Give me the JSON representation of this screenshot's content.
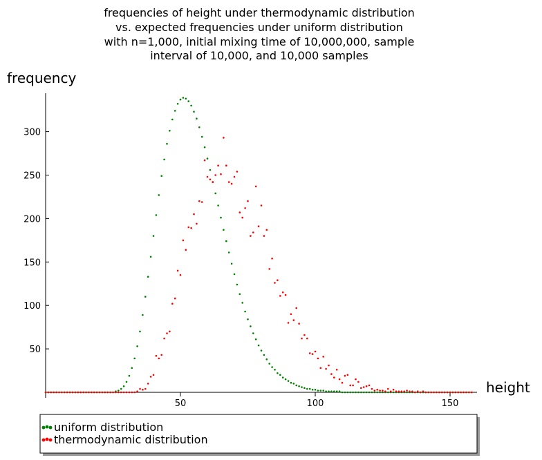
{
  "colors": {
    "uniform": "#008000",
    "thermo": "#ff0000"
  },
  "chart_data": {
    "type": "scatter",
    "title_lines": [
      "frequencies of height under thermodynamic distribution",
      "vs. expected frequencies under uniform distribution",
      "with n=1,000, initial mixing time of 10,000,000, sample",
      "interval of 10,000, and 10,000 samples"
    ],
    "xlabel": "height",
    "ylabel": "frequency",
    "xlim": [
      0,
      160
    ],
    "ylim": [
      0,
      345
    ],
    "xticks": [
      50,
      100,
      150
    ],
    "yticks": [
      50,
      100,
      150,
      200,
      250,
      300
    ],
    "legend_placement": "bottom",
    "series": [
      {
        "name": "uniform distribution",
        "color": "#008000",
        "x": [
          0,
          1,
          2,
          3,
          4,
          5,
          6,
          7,
          8,
          9,
          10,
          11,
          12,
          13,
          14,
          15,
          16,
          17,
          18,
          19,
          20,
          21,
          22,
          23,
          24,
          25,
          26,
          27,
          28,
          29,
          30,
          31,
          32,
          33,
          34,
          35,
          36,
          37,
          38,
          39,
          40,
          41,
          42,
          43,
          44,
          45,
          46,
          47,
          48,
          49,
          50,
          51,
          52,
          53,
          54,
          55,
          56,
          57,
          58,
          59,
          60,
          61,
          62,
          63,
          64,
          65,
          66,
          67,
          68,
          69,
          70,
          71,
          72,
          73,
          74,
          75,
          76,
          77,
          78,
          79,
          80,
          81,
          82,
          83,
          84,
          85,
          86,
          87,
          88,
          89,
          90,
          91,
          92,
          93,
          94,
          95,
          96,
          97,
          98,
          99,
          100,
          101,
          102,
          103,
          104,
          105,
          106,
          107,
          108,
          109,
          110,
          111,
          112,
          113,
          114,
          115,
          116,
          117,
          118,
          119,
          120,
          121,
          122,
          123,
          124,
          125,
          126,
          127,
          128,
          129,
          130,
          131,
          132,
          133,
          134,
          135,
          136,
          137,
          138,
          139,
          140,
          141,
          142,
          143,
          144,
          145,
          146,
          147,
          148,
          149,
          150,
          151,
          152,
          153,
          154,
          155,
          156,
          157,
          158
        ],
        "y": [
          0,
          0,
          0,
          0,
          0,
          0,
          0,
          0,
          0,
          0,
          0,
          0,
          0,
          0,
          0,
          0,
          0,
          0,
          0,
          0,
          0,
          0,
          0,
          0,
          0,
          0,
          1,
          2,
          4,
          7,
          12,
          19,
          28,
          39,
          53,
          70,
          89,
          110,
          133,
          156,
          180,
          204,
          227,
          249,
          268,
          286,
          301,
          314,
          324,
          332,
          337,
          339,
          338,
          335,
          330,
          323,
          315,
          305,
          294,
          282,
          269,
          256,
          242,
          229,
          215,
          201,
          187,
          174,
          161,
          148,
          136,
          124,
          113,
          103,
          93,
          84,
          76,
          68,
          61,
          54,
          48,
          43,
          38,
          33,
          29,
          26,
          22,
          20,
          17,
          15,
          13,
          11,
          10,
          8,
          7,
          6,
          5,
          4,
          4,
          3,
          3,
          2,
          2,
          2,
          1,
          1,
          1,
          1,
          1,
          1,
          0,
          0,
          0,
          0,
          0,
          0,
          0,
          0,
          0,
          0,
          0,
          0,
          0,
          0,
          0,
          0,
          0,
          0,
          0,
          0,
          0,
          0,
          0,
          0,
          0,
          0,
          0,
          0,
          0,
          0,
          0,
          0,
          0,
          0,
          0,
          0,
          0,
          0,
          0,
          0,
          0,
          0,
          0,
          0,
          0,
          0,
          0,
          0,
          0
        ]
      },
      {
        "name": "thermodynamic distribution",
        "color": "#ff0000",
        "x": [
          0,
          1,
          2,
          3,
          4,
          5,
          6,
          7,
          8,
          9,
          10,
          11,
          12,
          13,
          14,
          15,
          16,
          17,
          18,
          19,
          20,
          21,
          22,
          23,
          24,
          25,
          26,
          27,
          28,
          29,
          30,
          31,
          32,
          33,
          34,
          35,
          36,
          37,
          38,
          39,
          40,
          41,
          42,
          43,
          44,
          45,
          46,
          47,
          48,
          49,
          50,
          51,
          52,
          53,
          54,
          55,
          56,
          57,
          58,
          59,
          60,
          61,
          62,
          63,
          64,
          65,
          66,
          67,
          68,
          69,
          70,
          71,
          72,
          73,
          74,
          75,
          76,
          77,
          78,
          79,
          80,
          81,
          82,
          83,
          84,
          85,
          86,
          87,
          88,
          89,
          90,
          91,
          92,
          93,
          94,
          95,
          96,
          97,
          98,
          99,
          100,
          101,
          102,
          103,
          104,
          105,
          106,
          107,
          108,
          109,
          110,
          111,
          112,
          113,
          114,
          115,
          116,
          117,
          118,
          119,
          120,
          121,
          122,
          123,
          124,
          125,
          126,
          127,
          128,
          129,
          130,
          131,
          132,
          133,
          134,
          135,
          136,
          137,
          138,
          139,
          140,
          141,
          142,
          143,
          144,
          145,
          146,
          147,
          148,
          149,
          150,
          151,
          152,
          153,
          154,
          155,
          156,
          157,
          158
        ],
        "y": [
          0,
          0,
          0,
          0,
          0,
          0,
          0,
          0,
          0,
          0,
          0,
          0,
          0,
          0,
          0,
          0,
          0,
          0,
          0,
          0,
          0,
          0,
          0,
          0,
          0,
          0,
          0,
          0,
          0,
          0,
          0,
          0,
          0,
          0,
          1,
          4,
          3,
          4,
          10,
          18,
          20,
          42,
          39,
          43,
          62,
          68,
          70,
          102,
          108,
          140,
          135,
          175,
          164,
          190,
          189,
          205,
          194,
          220,
          219,
          267,
          248,
          245,
          242,
          250,
          261,
          251,
          293,
          261,
          242,
          240,
          248,
          254,
          207,
          201,
          212,
          220,
          180,
          184,
          237,
          191,
          215,
          180,
          187,
          142,
          154,
          126,
          129,
          111,
          115,
          112,
          80,
          90,
          83,
          97,
          79,
          62,
          66,
          62,
          45,
          44,
          47,
          39,
          28,
          41,
          27,
          31,
          21,
          17,
          26,
          15,
          11,
          19,
          20,
          8,
          8,
          15,
          12,
          5,
          6,
          7,
          8,
          4,
          2,
          3,
          2,
          2,
          1,
          4,
          1,
          3,
          1,
          1,
          1,
          1,
          2,
          1,
          1,
          0,
          1,
          0,
          1,
          0,
          0,
          0,
          0,
          0,
          0,
          0,
          0,
          0,
          0,
          0,
          0,
          0,
          0,
          0,
          0,
          0,
          0
        ]
      }
    ]
  }
}
